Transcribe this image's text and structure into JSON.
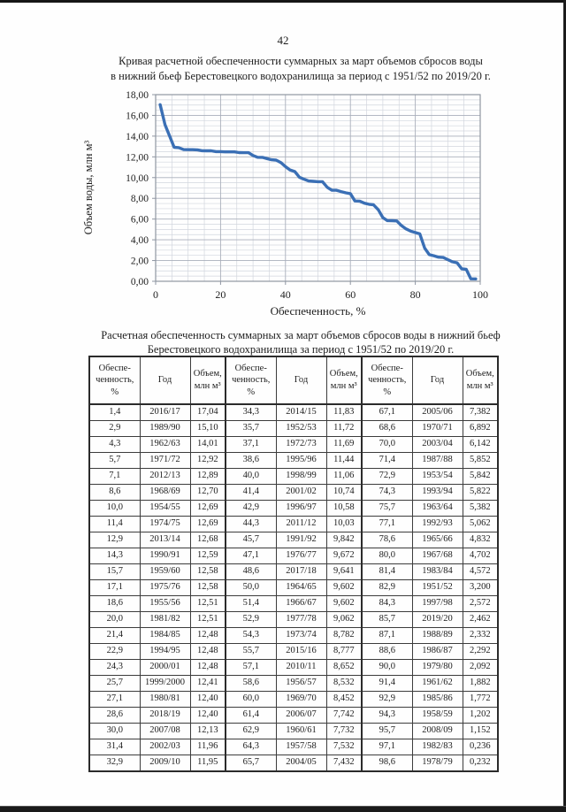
{
  "page": {
    "number": "42"
  },
  "chart": {
    "title_line1": "Кривая расчетной обеспеченности суммарных за март объемов сбросов воды",
    "title_line2": "в нижний бьеф Берестовецкого водохранилища за период с 1951/52 по 2019/20 г."
  },
  "chart_data": {
    "type": "line",
    "title": "Кривая расчетной обеспеченности суммарных за март объемов сбросов воды в нижний бьеф Берестовецкого водохранилища за период с 1951/52 по 2019/20 г.",
    "xlabel": "Обеспеченность, %",
    "ylabel": "Объем воды, млн м³",
    "xlim": [
      0,
      100
    ],
    "ylim": [
      0,
      18
    ],
    "x_major_step": 20,
    "x_minor_step": 5,
    "y_major_step": 2,
    "y_minor_step": 0.5,
    "grid": "major+minor",
    "legend": "none",
    "line_color": "#3a6fb5",
    "x_tick_labels": [
      "0",
      "20",
      "40",
      "60",
      "80",
      "100"
    ],
    "y_tick_labels": [
      "0,00",
      "2,00",
      "4,00",
      "6,00",
      "8,00",
      "10,00",
      "12,00",
      "14,00",
      "16,00",
      "18,00"
    ],
    "x": [
      1.4,
      2.9,
      4.3,
      5.7,
      7.1,
      8.6,
      10.0,
      11.4,
      12.9,
      14.3,
      15.7,
      17.1,
      18.6,
      20.0,
      21.4,
      22.9,
      24.3,
      25.7,
      27.1,
      28.6,
      30.0,
      31.4,
      32.9,
      34.3,
      35.7,
      37.1,
      38.6,
      40.0,
      41.4,
      42.9,
      44.3,
      45.7,
      47.1,
      48.6,
      50.0,
      51.4,
      52.9,
      54.3,
      55.7,
      57.1,
      58.6,
      60.0,
      61.4,
      62.9,
      64.3,
      65.7,
      67.1,
      68.6,
      70.0,
      71.4,
      72.9,
      74.3,
      75.7,
      77.1,
      78.6,
      80.0,
      81.4,
      82.9,
      84.3,
      85.7,
      87.1,
      88.6,
      90.0,
      91.4,
      92.9,
      94.3,
      95.7,
      97.1,
      98.6
    ],
    "y": [
      17.04,
      15.1,
      14.01,
      12.92,
      12.89,
      12.7,
      12.69,
      12.69,
      12.68,
      12.59,
      12.58,
      12.58,
      12.51,
      12.51,
      12.48,
      12.48,
      12.48,
      12.41,
      12.4,
      12.4,
      12.13,
      11.96,
      11.95,
      11.83,
      11.72,
      11.69,
      11.44,
      11.06,
      10.74,
      10.58,
      10.03,
      9.842,
      9.672,
      9.641,
      9.602,
      9.602,
      9.062,
      8.782,
      8.777,
      8.652,
      8.532,
      8.452,
      7.742,
      7.732,
      7.532,
      7.432,
      7.382,
      6.892,
      6.142,
      5.852,
      5.842,
      5.822,
      5.382,
      5.062,
      4.832,
      4.702,
      4.572,
      3.2,
      2.572,
      2.462,
      2.332,
      2.292,
      2.092,
      1.882,
      1.772,
      1.202,
      1.152,
      0.236,
      0.232
    ],
    "years": [
      "2016/17",
      "1989/90",
      "1962/63",
      "1971/72",
      "2012/13",
      "1968/69",
      "1954/55",
      "1974/75",
      "2013/14",
      "1990/91",
      "1959/60",
      "1975/76",
      "1955/56",
      "1981/82",
      "1984/85",
      "1994/95",
      "2000/01",
      "1999/2000",
      "1980/81",
      "2018/19",
      "2007/08",
      "2002/03",
      "2009/10",
      "2014/15",
      "1952/53",
      "1972/73",
      "1995/96",
      "1998/99",
      "2001/02",
      "1996/97",
      "2011/12",
      "1991/92",
      "1976/77",
      "2017/18",
      "1964/65",
      "1966/67",
      "1977/78",
      "1973/74",
      "2015/16",
      "2010/11",
      "1956/57",
      "1969/70",
      "2006/07",
      "1960/61",
      "1957/58",
      "2004/05",
      "2005/06",
      "1970/71",
      "2003/04",
      "1987/88",
      "1953/54",
      "1993/94",
      "1963/64",
      "1992/93",
      "1965/66",
      "1967/68",
      "1983/84",
      "1951/52",
      "1997/98",
      "2019/20",
      "1988/89",
      "1986/87",
      "1979/80",
      "1961/62",
      "1985/86",
      "1958/59",
      "2008/09",
      "1982/83",
      "1978/79"
    ]
  },
  "table": {
    "title_line1": "Расчетная обеспеченность суммарных за март объемов сбросов воды в нижний бьеф",
    "title_line2": "Берестовецкого водохранилища за период с 1951/52 по 2019/20 г.",
    "header": {
      "percent": "Обеспе-\nченность,\n%",
      "year": "Год",
      "volume": "Объем,\nмлн м³"
    },
    "rows": [
      [
        "1,4",
        "2016/17",
        "17,04",
        "34,3",
        "2014/15",
        "11,83",
        "67,1",
        "2005/06",
        "7,382"
      ],
      [
        "2,9",
        "1989/90",
        "15,10",
        "35,7",
        "1952/53",
        "11,72",
        "68,6",
        "1970/71",
        "6,892"
      ],
      [
        "4,3",
        "1962/63",
        "14,01",
        "37,1",
        "1972/73",
        "11,69",
        "70,0",
        "2003/04",
        "6,142"
      ],
      [
        "5,7",
        "1971/72",
        "12,92",
        "38,6",
        "1995/96",
        "11,44",
        "71,4",
        "1987/88",
        "5,852"
      ],
      [
        "7,1",
        "2012/13",
        "12,89",
        "40,0",
        "1998/99",
        "11,06",
        "72,9",
        "1953/54",
        "5,842"
      ],
      [
        "8,6",
        "1968/69",
        "12,70",
        "41,4",
        "2001/02",
        "10,74",
        "74,3",
        "1993/94",
        "5,822"
      ],
      [
        "10,0",
        "1954/55",
        "12,69",
        "42,9",
        "1996/97",
        "10,58",
        "75,7",
        "1963/64",
        "5,382"
      ],
      [
        "11,4",
        "1974/75",
        "12,69",
        "44,3",
        "2011/12",
        "10,03",
        "77,1",
        "1992/93",
        "5,062"
      ],
      [
        "12,9",
        "2013/14",
        "12,68",
        "45,7",
        "1991/92",
        "9,842",
        "78,6",
        "1965/66",
        "4,832"
      ],
      [
        "14,3",
        "1990/91",
        "12,59",
        "47,1",
        "1976/77",
        "9,672",
        "80,0",
        "1967/68",
        "4,702"
      ],
      [
        "15,7",
        "1959/60",
        "12,58",
        "48,6",
        "2017/18",
        "9,641",
        "81,4",
        "1983/84",
        "4,572"
      ],
      [
        "17,1",
        "1975/76",
        "12,58",
        "50,0",
        "1964/65",
        "9,602",
        "82,9",
        "1951/52",
        "3,200"
      ],
      [
        "18,6",
        "1955/56",
        "12,51",
        "51,4",
        "1966/67",
        "9,602",
        "84,3",
        "1997/98",
        "2,572"
      ],
      [
        "20,0",
        "1981/82",
        "12,51",
        "52,9",
        "1977/78",
        "9,062",
        "85,7",
        "2019/20",
        "2,462"
      ],
      [
        "21,4",
        "1984/85",
        "12,48",
        "54,3",
        "1973/74",
        "8,782",
        "87,1",
        "1988/89",
        "2,332"
      ],
      [
        "22,9",
        "1994/95",
        "12,48",
        "55,7",
        "2015/16",
        "8,777",
        "88,6",
        "1986/87",
        "2,292"
      ],
      [
        "24,3",
        "2000/01",
        "12,48",
        "57,1",
        "2010/11",
        "8,652",
        "90,0",
        "1979/80",
        "2,092"
      ],
      [
        "25,7",
        "1999/2000",
        "12,41",
        "58,6",
        "1956/57",
        "8,532",
        "91,4",
        "1961/62",
        "1,882"
      ],
      [
        "27,1",
        "1980/81",
        "12,40",
        "60,0",
        "1969/70",
        "8,452",
        "92,9",
        "1985/86",
        "1,772"
      ],
      [
        "28,6",
        "2018/19",
        "12,40",
        "61,4",
        "2006/07",
        "7,742",
        "94,3",
        "1958/59",
        "1,202"
      ],
      [
        "30,0",
        "2007/08",
        "12,13",
        "62,9",
        "1960/61",
        "7,732",
        "95,7",
        "2008/09",
        "1,152"
      ],
      [
        "31,4",
        "2002/03",
        "11,96",
        "64,3",
        "1957/58",
        "7,532",
        "97,1",
        "1982/83",
        "0,236"
      ],
      [
        "32,9",
        "2009/10",
        "11,95",
        "65,7",
        "2004/05",
        "7,432",
        "98,6",
        "1978/79",
        "0,232"
      ]
    ]
  },
  "colors": {
    "line": "#3a6fb5",
    "grid_minor": "#d2d6de",
    "grid_major": "#a9afbb",
    "frame": "#8f96a2",
    "scan_edge": "#1a1a1a"
  }
}
